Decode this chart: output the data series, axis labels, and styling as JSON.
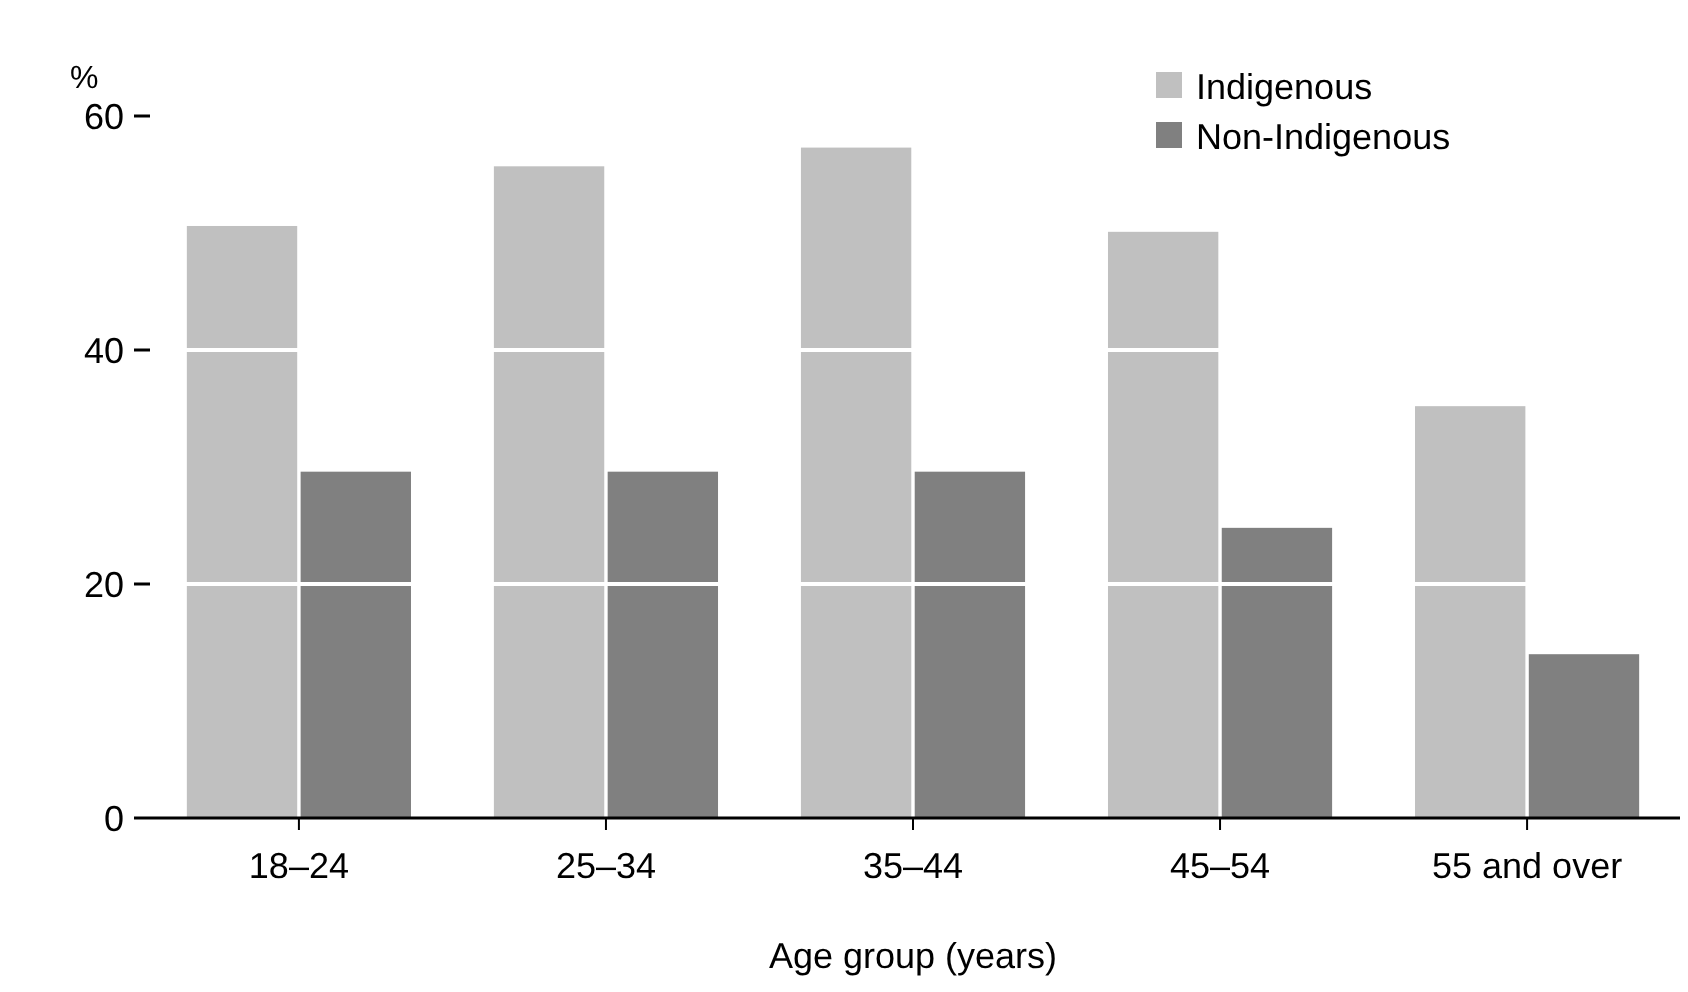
{
  "chart_data": {
    "type": "bar",
    "ylabel": "%",
    "xlabel": "Age group (years)",
    "categories": [
      "18–24",
      "25–34",
      "35–44",
      "45–54",
      "55 and over"
    ],
    "series": [
      {
        "name": "Indigenous",
        "color": "#c0c0c0",
        "values": [
          50.6,
          55.7,
          57.3,
          50.1,
          35.2
        ]
      },
      {
        "name": "Non-Indigenous",
        "color": "#808080",
        "values": [
          29.6,
          29.6,
          29.6,
          24.8,
          14.0
        ]
      }
    ],
    "ylim": [
      0,
      60
    ],
    "yticks": [
      0,
      20,
      40,
      60
    ],
    "grid": "y",
    "legend": "top right"
  }
}
